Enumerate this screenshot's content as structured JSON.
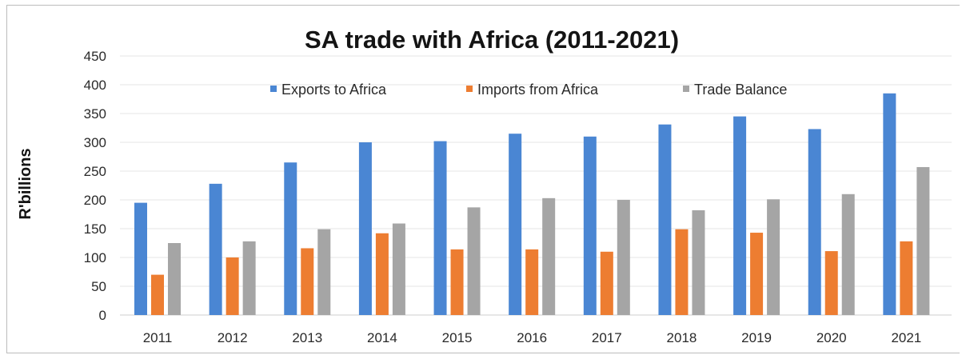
{
  "chart_data": {
    "type": "bar",
    "title": "SA trade with Africa (2011-2021)",
    "xlabel": "",
    "ylabel": "R'billions",
    "ylim": [
      0,
      450
    ],
    "yticks": [
      0,
      50,
      100,
      150,
      200,
      250,
      300,
      350,
      400,
      450
    ],
    "grid": true,
    "legend_position": "top",
    "categories": [
      "2011",
      "2012",
      "2013",
      "2014",
      "2015",
      "2016",
      "2017",
      "2018",
      "2019",
      "2020",
      "2021"
    ],
    "series": [
      {
        "name": "Exports to Africa",
        "color": "#4a86d3",
        "values": [
          195,
          228,
          265,
          300,
          302,
          315,
          310,
          331,
          345,
          323,
          385
        ]
      },
      {
        "name": "Imports from Africa",
        "color": "#ed7d31",
        "values": [
          70,
          100,
          116,
          142,
          114,
          114,
          110,
          149,
          143,
          111,
          128
        ]
      },
      {
        "name": "Trade Balance",
        "color": "#a5a5a5",
        "values": [
          125,
          128,
          149,
          159,
          187,
          203,
          200,
          182,
          201,
          210,
          257
        ]
      }
    ]
  }
}
